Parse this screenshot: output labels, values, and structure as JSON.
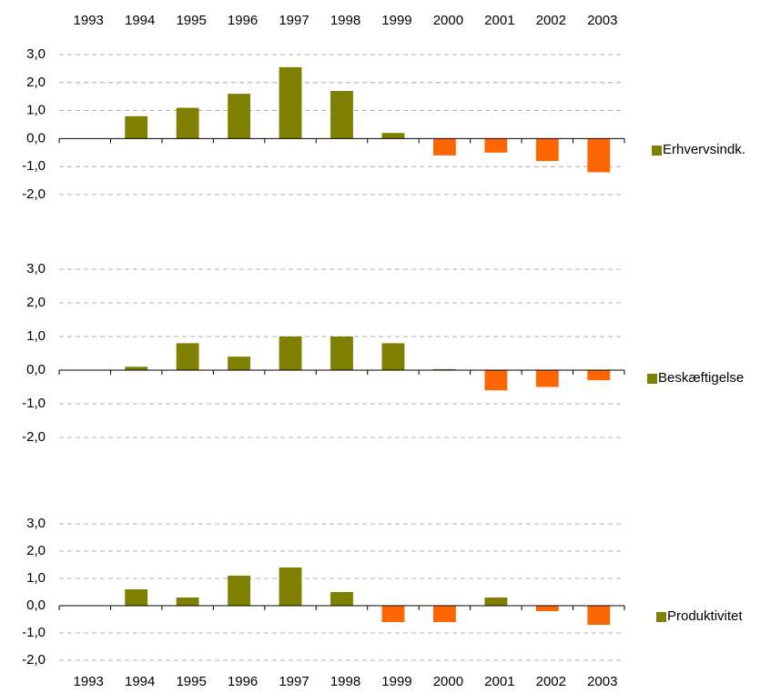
{
  "chart_data": [
    {
      "type": "bar",
      "categories": [
        "1993",
        "1994",
        "1995",
        "1996",
        "1997",
        "1998",
        "1999",
        "2000",
        "2001",
        "2002",
        "2003"
      ],
      "series": [
        {
          "name": "Erhvervsindk.",
          "color": "#808000",
          "negative_color": "#ff6600",
          "values": [
            null,
            0.8,
            1.1,
            1.6,
            2.55,
            1.7,
            0.2,
            -0.6,
            -0.5,
            -0.8,
            -1.2
          ]
        }
      ],
      "ylim": [
        -2,
        3
      ],
      "yticks": [
        {
          "value": -2,
          "label": "-2,0"
        },
        {
          "value": -1,
          "label": "-1,0"
        },
        {
          "value": 0,
          "label": "0,0"
        },
        {
          "value": 1,
          "label": "1,0"
        },
        {
          "value": 2,
          "label": "2,0"
        },
        {
          "value": 3,
          "label": "3,0"
        }
      ],
      "grid": true,
      "category_labels": "top"
    },
    {
      "type": "bar",
      "series": [
        {
          "name": "Beskæftigelse",
          "color": "#808000",
          "negative_color": "#ff6600",
          "values": [
            null,
            0.1,
            0.8,
            0.4,
            1.0,
            1.0,
            0.8,
            0.03,
            -0.6,
            -0.5,
            -0.3
          ]
        }
      ],
      "ylim": [
        -2,
        3
      ],
      "yticks": [
        {
          "value": -2,
          "label": "-2,0"
        },
        {
          "value": -1,
          "label": "-1,0"
        },
        {
          "value": 0,
          "label": "0,0"
        },
        {
          "value": 1,
          "label": "1,0"
        },
        {
          "value": 2,
          "label": "2,0"
        },
        {
          "value": 3,
          "label": "3,0"
        }
      ],
      "grid": true
    },
    {
      "type": "bar",
      "categories": [
        "1993",
        "1994",
        "1995",
        "1996",
        "1997",
        "1998",
        "1999",
        "2000",
        "2001",
        "2002",
        "2003"
      ],
      "series": [
        {
          "name": "Produktivitet",
          "color": "#808000",
          "negative_color": "#ff6600",
          "values": [
            null,
            0.6,
            0.3,
            1.1,
            1.4,
            0.5,
            -0.6,
            -0.6,
            0.3,
            -0.2,
            -0.7
          ]
        }
      ],
      "ylim": [
        -2,
        3
      ],
      "yticks": [
        {
          "value": -2,
          "label": "-2,0"
        },
        {
          "value": -1,
          "label": "-1,0"
        },
        {
          "value": 0,
          "label": "0,0"
        },
        {
          "value": 1,
          "label": "1,0"
        },
        {
          "value": 2,
          "label": "2,0"
        },
        {
          "value": 3,
          "label": "3,0"
        }
      ],
      "grid": true,
      "category_labels": "bottom"
    }
  ]
}
